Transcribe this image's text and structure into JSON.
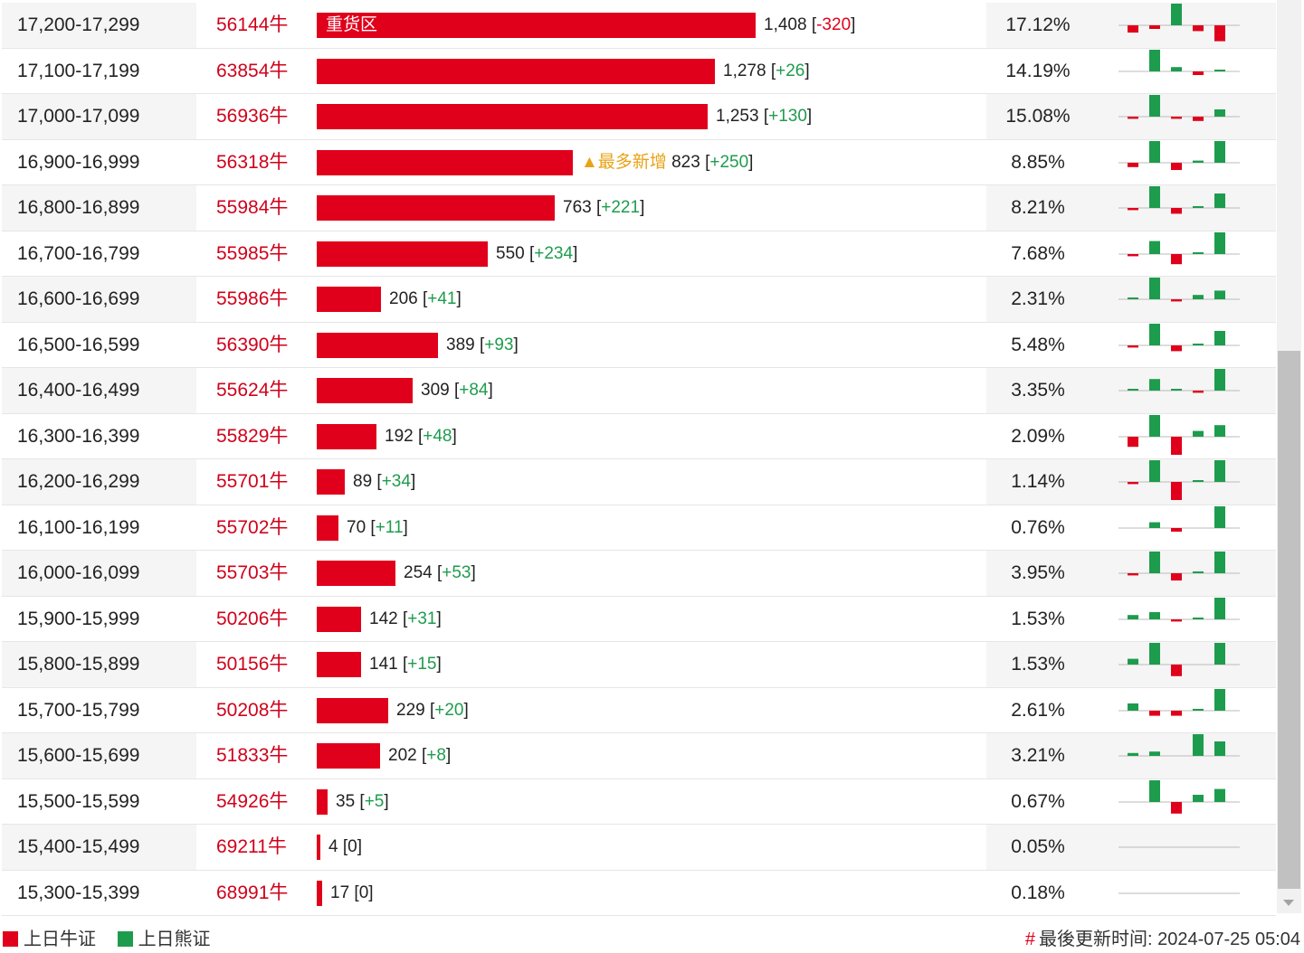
{
  "colors": {
    "bull": "#e0001b",
    "bear": "#1e9c4d",
    "tag": "#e8a317"
  },
  "rows": [
    {
      "range": "17,200-17,299",
      "code": "56144牛",
      "count": 1408,
      "count_text": "1,408",
      "change": "-320",
      "pct": "17.12%",
      "label": "重货区",
      "tag": "",
      "spark": [
        -1,
        -0.5,
        3,
        -0.8,
        -2.2
      ]
    },
    {
      "range": "17,100-17,199",
      "code": "63854牛",
      "count": 1278,
      "count_text": "1,278",
      "change": "+26",
      "pct": "14.19%",
      "label": "",
      "tag": "",
      "spark": [
        0,
        3,
        0.6,
        -0.5,
        0.2
      ]
    },
    {
      "range": "17,000-17,099",
      "code": "56936牛",
      "count": 1253,
      "count_text": "1,253",
      "change": "+130",
      "pct": "15.08%",
      "label": "",
      "tag": "",
      "spark": [
        -0.3,
        3,
        -0.3,
        -0.6,
        1
      ]
    },
    {
      "range": "16,900-16,999",
      "code": "56318牛",
      "count": 823,
      "count_text": "823",
      "change": "+250",
      "pct": "8.85%",
      "label": "",
      "tag": "▲最多新增",
      "spark": [
        -0.6,
        3,
        -1,
        0.3,
        3
      ]
    },
    {
      "range": "16,800-16,899",
      "code": "55984牛",
      "count": 763,
      "count_text": "763",
      "change": "+221",
      "pct": "8.21%",
      "label": "",
      "tag": "",
      "spark": [
        -0.3,
        3,
        -0.8,
        0.2,
        2
      ]
    },
    {
      "range": "16,700-16,799",
      "code": "55985牛",
      "count": 550,
      "count_text": "550",
      "change": "+234",
      "pct": "7.68%",
      "label": "",
      "tag": "",
      "spark": [
        -0.3,
        1.8,
        -1.4,
        0.2,
        3
      ]
    },
    {
      "range": "16,600-16,699",
      "code": "55986牛",
      "count": 206,
      "count_text": "206",
      "change": "+41",
      "pct": "2.31%",
      "label": "",
      "tag": "",
      "spark": [
        0.2,
        3,
        -0.3,
        0.6,
        1.2
      ]
    },
    {
      "range": "16,500-16,599",
      "code": "56390牛",
      "count": 389,
      "count_text": "389",
      "change": "+93",
      "pct": "5.48%",
      "label": "",
      "tag": "",
      "spark": [
        -0.3,
        3,
        -0.8,
        0.2,
        2
      ]
    },
    {
      "range": "16,400-16,499",
      "code": "55624牛",
      "count": 309,
      "count_text": "309",
      "change": "+84",
      "pct": "3.35%",
      "label": "",
      "tag": "",
      "spark": [
        0.2,
        1.6,
        0.2,
        -0.3,
        3
      ]
    },
    {
      "range": "16,300-16,399",
      "code": "55829牛",
      "count": 192,
      "count_text": "192",
      "change": "+48",
      "pct": "2.09%",
      "label": "",
      "tag": "",
      "spark": [
        -1.4,
        3,
        -2.5,
        0.8,
        1.6
      ]
    },
    {
      "range": "16,200-16,299",
      "code": "55701牛",
      "count": 89,
      "count_text": "89",
      "change": "+34",
      "pct": "1.14%",
      "label": "",
      "tag": "",
      "spark": [
        -0.3,
        3,
        -2.5,
        0.2,
        3
      ]
    },
    {
      "range": "16,100-16,199",
      "code": "55702牛",
      "count": 70,
      "count_text": "70",
      "change": "+11",
      "pct": "0.76%",
      "label": "",
      "tag": "",
      "spark": [
        0,
        0.8,
        -0.5,
        0,
        3
      ]
    },
    {
      "range": "16,000-16,099",
      "code": "55703牛",
      "count": 254,
      "count_text": "254",
      "change": "+53",
      "pct": "3.95%",
      "label": "",
      "tag": "",
      "spark": [
        -0.3,
        3,
        -1,
        0.2,
        3
      ]
    },
    {
      "range": "15,900-15,999",
      "code": "50206牛",
      "count": 142,
      "count_text": "142",
      "change": "+31",
      "pct": "1.53%",
      "label": "",
      "tag": "",
      "spark": [
        0.6,
        1,
        -0.3,
        0.2,
        3
      ]
    },
    {
      "range": "15,800-15,899",
      "code": "50156牛",
      "count": 141,
      "count_text": "141",
      "change": "+15",
      "pct": "1.53%",
      "label": "",
      "tag": "",
      "spark": [
        0.8,
        3,
        -1.6,
        0,
        3
      ]
    },
    {
      "range": "15,700-15,799",
      "code": "50208牛",
      "count": 229,
      "count_text": "229",
      "change": "+20",
      "pct": "2.61%",
      "label": "",
      "tag": "",
      "spark": [
        1,
        -0.7,
        -0.7,
        0.1,
        3
      ]
    },
    {
      "range": "15,600-15,699",
      "code": "51833牛",
      "count": 202,
      "count_text": "202",
      "change": "+8",
      "pct": "3.21%",
      "label": "",
      "tag": "",
      "spark": [
        0.4,
        0.6,
        0,
        3,
        2
      ]
    },
    {
      "range": "15,500-15,599",
      "code": "54926牛",
      "count": 35,
      "count_text": "35",
      "change": "+5",
      "pct": "0.67%",
      "label": "",
      "tag": "",
      "spark": [
        0,
        3,
        -1.6,
        1,
        1.8
      ]
    },
    {
      "range": "15,400-15,499",
      "code": "69211牛",
      "count": 4,
      "count_text": "4",
      "change": "0",
      "pct": "0.05%",
      "label": "",
      "tag": "",
      "spark": [
        0,
        0,
        0,
        0,
        0
      ]
    },
    {
      "range": "15,300-15,399",
      "code": "68991牛",
      "count": 17,
      "count_text": "17",
      "change": "0",
      "pct": "0.18%",
      "label": "",
      "tag": "",
      "spark": [
        0,
        0,
        0,
        0,
        0
      ]
    }
  ],
  "legend": {
    "bull_label": "上日牛证",
    "bear_label": "上日熊证"
  },
  "footer": {
    "hash": "#",
    "updated_text": "最後更新时间: 2024-07-25 05:04"
  }
}
